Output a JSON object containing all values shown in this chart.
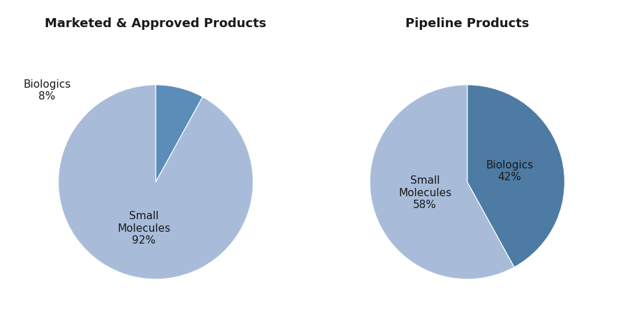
{
  "chart1_title": "Marketed & Approved Products",
  "chart2_title": "Pipeline Products",
  "chart1_slices": [
    8,
    92
  ],
  "chart2_slices": [
    42,
    58
  ],
  "color_dark_blue_1": "#5B8DB8",
  "color_light_blue_1": "#A8BCDA",
  "color_dark_blue_2": "#4E7BA3",
  "color_light_blue_2": "#A8BCDA",
  "chart1_colors": [
    "#5B8DB8",
    "#A8BCDA"
  ],
  "chart2_colors": [
    "#4E7BA3",
    "#A8BCDA"
  ],
  "chart1_startangle": 90,
  "chart2_startangle": 90,
  "bg_color": "#FFFFFF",
  "title_fontsize": 13,
  "label_fontsize": 11
}
